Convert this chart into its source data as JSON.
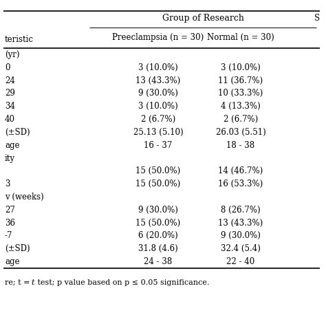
{
  "title": "Group of Research",
  "col_headers": [
    "Preeclampsia (n = 30)",
    "Normal (n = 30)"
  ],
  "right_col_partial": "S",
  "top_left_label": "teristic",
  "rows": [
    {
      "label": "(yr)",
      "pre": "",
      "norm": ""
    },
    {
      "label": "0",
      "pre": "3 (10.0%)",
      "norm": "3 (10.0%)"
    },
    {
      "label": "24",
      "pre": "13 (43.3%)",
      "norm": "11 (36.7%)"
    },
    {
      "label": "29",
      "pre": "9 (30.0%)",
      "norm": "10 (33.3%)"
    },
    {
      "label": "34",
      "pre": "3 (10.0%)",
      "norm": "4 (13.3%)"
    },
    {
      "label": "40",
      "pre": "2 (6.7%)",
      "norm": "2 (6.7%)"
    },
    {
      "label": "(±SD)",
      "pre": "25.13 (5.10)",
      "norm": "26.03 (5.51)"
    },
    {
      "label": "age",
      "pre": "16 - 37",
      "norm": "18 - 38"
    },
    {
      "label": "ity",
      "pre": "",
      "norm": ""
    },
    {
      "label": "",
      "pre": "15 (50.0%)",
      "norm": "14 (46.7%)"
    },
    {
      "label": "3",
      "pre": "15 (50.0%)",
      "norm": "16 (53.3%)"
    },
    {
      "label": "v (weeks)",
      "pre": "",
      "norm": ""
    },
    {
      "label": "27",
      "pre": "9 (30.0%)",
      "norm": "8 (26.7%)"
    },
    {
      "label": "36",
      "pre": "15 (50.0%)",
      "norm": "13 (43.3%)"
    },
    {
      "label": "-7",
      "pre": "6 (20.0%)",
      "norm": "9 (30.0%)"
    },
    {
      "label": "(±SD)",
      "pre": "31.8 (4.6)",
      "norm": "32.4 (5.4)"
    },
    {
      "label": "age",
      "pre": "24 - 38",
      "norm": "22 - 40"
    }
  ],
  "footnote_parts": [
    "re; t = ",
    "t",
    " test; p value based on p ≤ 0.05 significance."
  ],
  "bg_color": "#ffffff",
  "text_color": "#000000",
  "line_color": "#2b2b2b",
  "body_fontsize": 8.5,
  "header_fontsize": 9.0
}
